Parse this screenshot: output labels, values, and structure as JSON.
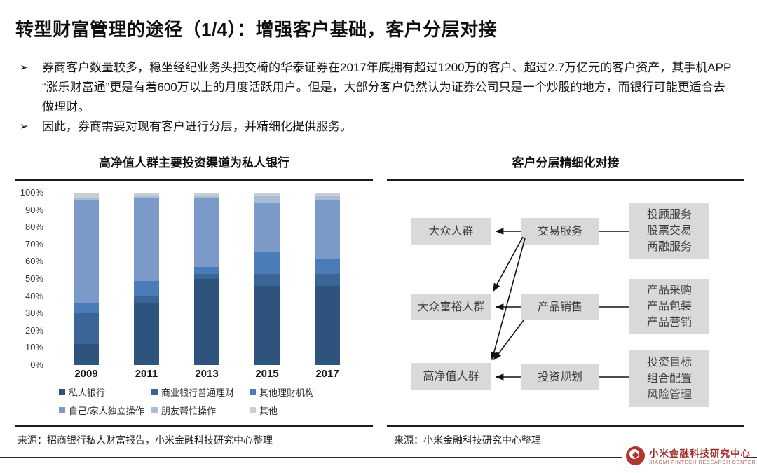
{
  "page": {
    "title": "转型财富管理的途径（1/4）：增强客户基础，客户分层对接",
    "bullets": [
      {
        "marker": "➢",
        "text": "券商客户数量较多，稳坐经纪业务头把交椅的华泰证券在2017年底拥有超过1200万的客户、超过2.7万亿元的客户资产，其手机APP “涨乐财富通”更是有着600万以上的月度活跃用户。但是，大部分客户仍然认为证券公司只是一个炒股的地方，而银行可能更适合去做理财。"
      },
      {
        "marker": "➢",
        "text": "因此，券商需要对现有客户进行分层，并精细化提供服务。"
      }
    ]
  },
  "chart_data": {
    "type": "bar",
    "stacked": true,
    "percent": true,
    "title": "高净值人群主要投资渠道为私人银行",
    "categories": [
      "2009",
      "2011",
      "2013",
      "2015",
      "2017"
    ],
    "series": [
      {
        "name": "私人银行",
        "color": "#2e547e",
        "values": [
          12,
          36,
          50,
          46,
          46
        ]
      },
      {
        "name": "商业银行普通理财",
        "color": "#3a6597",
        "values": [
          18,
          4,
          3,
          7,
          7
        ]
      },
      {
        "name": "其他理财机构",
        "color": "#4a7cba",
        "values": [
          6,
          9,
          4,
          13,
          9
        ]
      },
      {
        "name": "自己/家人独立操作",
        "color": "#7b9ac8",
        "values": [
          60,
          48,
          40,
          28,
          34
        ]
      },
      {
        "name": "朋友帮忙操作",
        "color": "#a9bcd8",
        "values": [
          1,
          1,
          1,
          4,
          2
        ]
      },
      {
        "name": "其他",
        "color": "#c9ced6",
        "values": [
          3,
          2,
          2,
          2,
          2
        ]
      }
    ],
    "yticks": [
      "100%",
      "90%",
      "80%",
      "70%",
      "60%",
      "50%",
      "40%",
      "30%",
      "20%",
      "10%",
      "0%"
    ],
    "ylim": [
      0,
      100
    ],
    "grid": false,
    "legend_position": "bottom",
    "source": "来源：招商银行私人财富报告，小米金融科技研究中心整理"
  },
  "diagram": {
    "title": "客户分层精细化对接",
    "tiers": [
      "大众人群",
      "大众富裕人群",
      "高净值人群"
    ],
    "services": [
      "交易服务",
      "产品销售",
      "投资规划"
    ],
    "details": [
      [
        "投顾服务",
        "股票交易",
        "两融服务"
      ],
      [
        "产品采购",
        "产品包装",
        "产品营销"
      ],
      [
        "投资目标",
        "组合配置",
        "风险管理"
      ]
    ],
    "links": [
      {
        "from": "交易服务",
        "to": [
          "大众人群",
          "大众富裕人群",
          "高净值人群"
        ]
      },
      {
        "from": "产品销售",
        "to": [
          "大众富裕人群",
          "高净值人群"
        ]
      },
      {
        "from": "投资规划",
        "to": [
          "高净值人群"
        ]
      }
    ],
    "source": "来源：小米金融科技研究中心整理"
  },
  "footer": {
    "logo_cn": "小米金融科技研究中心",
    "logo_en": "XIAOMI FINTECH RESEARCH CENTER"
  }
}
